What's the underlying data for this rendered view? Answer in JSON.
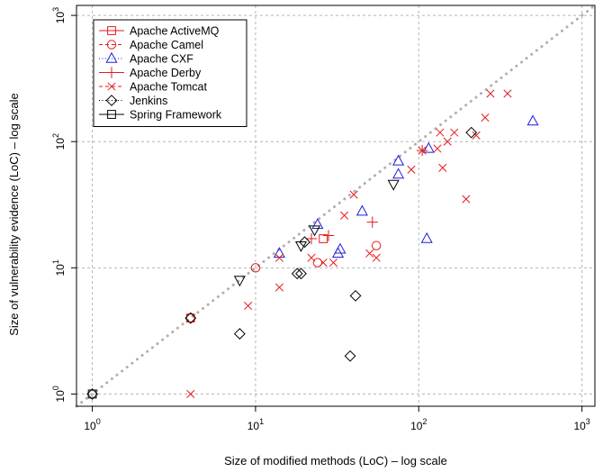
{
  "chart_data": {
    "type": "scatter",
    "title": "",
    "xlabel": "Size of modified methods (LoC) – log scale",
    "ylabel": "Size of vulnerability evidence (LoC) – log scale",
    "xscale": "log",
    "yscale": "log",
    "xlim": [
      0.8,
      1200
    ],
    "ylim": [
      0.8,
      1200
    ],
    "grid": true,
    "legend_position": "top-left",
    "x_ticks": [
      {
        "value": 1,
        "base": "10",
        "exp": "0"
      },
      {
        "value": 10,
        "base": "10",
        "exp": "1"
      },
      {
        "value": 100,
        "base": "10",
        "exp": "2"
      },
      {
        "value": 1000,
        "base": "10",
        "exp": "3"
      }
    ],
    "y_ticks": [
      {
        "value": 1,
        "base": "10",
        "exp": "0"
      },
      {
        "value": 10,
        "base": "10",
        "exp": "1"
      },
      {
        "value": 100,
        "base": "10",
        "exp": "2"
      },
      {
        "value": 1000,
        "base": "10",
        "exp": "3"
      }
    ],
    "reference_line": {
      "style": "dotted",
      "color": "#b0b0b0",
      "from": [
        0.8,
        0.8
      ],
      "to": [
        1200,
        1200
      ]
    },
    "series": [
      {
        "name": "Apache ActiveMQ",
        "marker": "square",
        "line": "solid",
        "color": "#e41a1c",
        "points": [
          [
            26,
            17
          ],
          [
            4,
            4
          ]
        ]
      },
      {
        "name": "Apache Camel",
        "marker": "circle",
        "line": "dashed",
        "color": "#e41a1c",
        "points": [
          [
            10,
            10
          ],
          [
            55,
            15
          ],
          [
            24,
            11
          ],
          [
            4,
            4
          ]
        ]
      },
      {
        "name": "Apache CXF",
        "marker": "triangle-up",
        "line": "dotted",
        "color": "#1f1fdc",
        "points": [
          [
            14,
            13
          ],
          [
            24,
            22
          ],
          [
            32,
            13
          ],
          [
            33,
            14
          ],
          [
            45,
            28
          ],
          [
            75,
            55
          ],
          [
            75,
            70
          ],
          [
            112,
            17
          ],
          [
            115,
            88
          ],
          [
            500,
            145
          ]
        ]
      },
      {
        "name": "Apache Derby",
        "marker": "plus",
        "line": "solid",
        "color": "#e41a1c",
        "points": [
          [
            22,
            17
          ],
          [
            28,
            18
          ],
          [
            52,
            23
          ],
          [
            105,
            85
          ]
        ]
      },
      {
        "name": "Apache Tomcat",
        "marker": "cross",
        "line": "dashed",
        "color": "#e41a1c",
        "points": [
          [
            4,
            1
          ],
          [
            9,
            5
          ],
          [
            14,
            7
          ],
          [
            14,
            12
          ],
          [
            22,
            12
          ],
          [
            26,
            11
          ],
          [
            30,
            11
          ],
          [
            35,
            26
          ],
          [
            40,
            38
          ],
          [
            50,
            13
          ],
          [
            55,
            12
          ],
          [
            90,
            60
          ],
          [
            105,
            85
          ],
          [
            130,
            88
          ],
          [
            135,
            118
          ],
          [
            140,
            62
          ],
          [
            150,
            100
          ],
          [
            165,
            118
          ],
          [
            195,
            35
          ],
          [
            225,
            112
          ],
          [
            255,
            155
          ],
          [
            275,
            240
          ],
          [
            350,
            240
          ]
        ]
      },
      {
        "name": "Jenkins",
        "marker": "diamond",
        "line": "dotted",
        "color": "#000000",
        "points": [
          [
            1,
            1
          ],
          [
            4,
            4
          ],
          [
            8,
            3
          ],
          [
            18,
            9
          ],
          [
            19,
            9
          ],
          [
            20,
            16
          ],
          [
            38,
            2
          ],
          [
            41,
            6
          ],
          [
            210,
            118
          ]
        ]
      },
      {
        "name": "Spring Framework",
        "marker": "square",
        "line": "solid",
        "color": "#000000",
        "points": [
          [
            1,
            1
          ]
        ]
      },
      {
        "name": "",
        "marker": "triangle-down",
        "line": "none",
        "color": "#000000",
        "points": [
          [
            8,
            8
          ],
          [
            19,
            15
          ],
          [
            23,
            20
          ],
          [
            70,
            46
          ]
        ]
      }
    ]
  }
}
